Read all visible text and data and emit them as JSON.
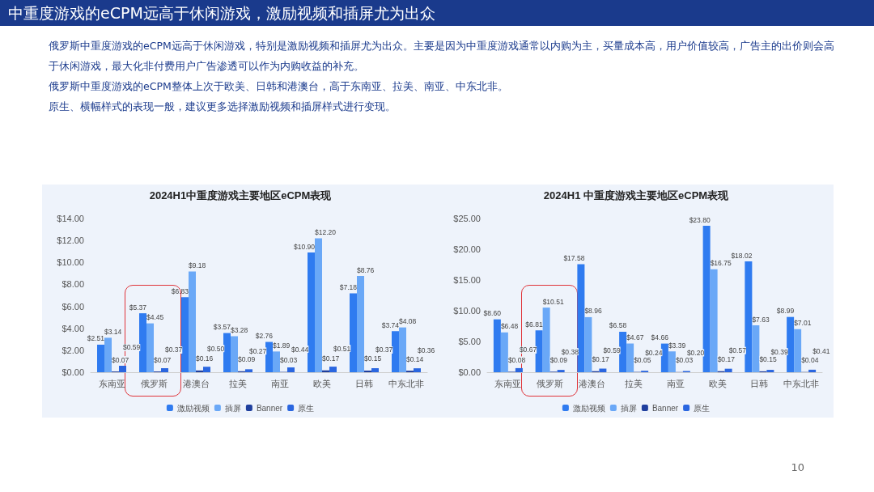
{
  "chart_data": [
    {
      "type": "bar",
      "title": "2024H1中重度游戏主要地区eCPM表现",
      "categories": [
        "东南亚",
        "俄罗斯",
        "港澳台",
        "拉美",
        "南亚",
        "欧美",
        "日韩",
        "中东北非"
      ],
      "series": [
        {
          "name": "激励视频",
          "color": "#2f7bf0",
          "values": [
            2.51,
            5.37,
            6.83,
            3.57,
            2.76,
            10.9,
            7.18,
            3.74
          ],
          "value_labels": [
            "$2.51",
            "$5.37",
            "$6.83",
            "$3.57",
            "$2.76",
            "$10.90",
            "$7.18",
            "$3.74"
          ]
        },
        {
          "name": "插屏",
          "color": "#6aa8f7",
          "values": [
            3.14,
            4.45,
            9.18,
            3.28,
            1.89,
            12.2,
            8.76,
            4.08
          ],
          "value_labels": [
            "$3.14",
            "$4.45",
            "$9.18",
            "$3.28",
            "$1.89",
            "$12.20",
            "$8.76",
            "$4.08"
          ]
        },
        {
          "name": "Banner",
          "color": "#1f3f9e",
          "values": [
            0.07,
            0.07,
            0.16,
            0.09,
            0.03,
            0.17,
            0.15,
            0.14
          ],
          "value_labels": [
            "$0.07",
            "$0.07",
            "$0.16",
            "$0.09",
            "$0.03",
            "$0.17",
            "$0.15",
            "$0.14"
          ]
        },
        {
          "name": "原生",
          "color": "#2a66e0",
          "values": [
            0.59,
            0.37,
            0.5,
            0.27,
            0.44,
            0.51,
            0.37,
            0.36
          ],
          "value_labels": [
            "$0.59",
            "$0.37",
            "$0.50",
            "$0.27",
            "$0.44",
            "$0.51",
            "$0.37",
            "$0.36"
          ]
        }
      ],
      "ylim": [
        0,
        14
      ],
      "yticks": [
        {
          "value": 0,
          "label": "$0.00"
        },
        {
          "value": 2,
          "label": "$2.00"
        },
        {
          "value": 4,
          "label": "$4.00"
        },
        {
          "value": 6,
          "label": "$6.00"
        },
        {
          "value": 8,
          "label": "$8.00"
        },
        {
          "value": 10,
          "label": "$10.00"
        },
        {
          "value": 12,
          "label": "$12.00"
        },
        {
          "value": 14,
          "label": "$14.00"
        }
      ],
      "grid": false,
      "legend": "bottom",
      "annotations": [
        "中重度游戏的eCPM远高于休闲游戏，激励视频和插屏尤为出众",
        "俄罗斯中重度游戏的eCPM远高于休闲游戏，特别是激励视频和插屏尤为出众。主要是因为中重度游戏通常以内购为主，买量成本高，用户价值较高，广告主的出价则会高于休闲游戏，最大化非付费用户广告渗透可以作为内购收益的补充。",
        "俄罗斯中重度游戏的eCPM整体上次于欧美、日韩和港澳台，高于东南亚、拉美、南亚、中东北非。",
        "原生、横幅样式的表现一般，建议更多选择激励视频和插屏样式进行变现。"
      ]
    },
    {
      "type": "bar",
      "title": "2024H1 中重度游戏主要地区eCPM表现",
      "categories": [
        "东南亚",
        "俄罗斯",
        "港澳台",
        "拉美",
        "南亚",
        "欧美",
        "日韩",
        "中东北非"
      ],
      "series": [
        {
          "name": "激励视频",
          "color": "#2f7bf0",
          "values": [
            8.6,
            6.81,
            17.58,
            6.58,
            4.66,
            23.8,
            18.02,
            8.99
          ],
          "value_labels": [
            "$8.60",
            "$6.81",
            "$17.58",
            "$6.58",
            "$4.66",
            "$23.80",
            "$18.02",
            "$8.99"
          ]
        },
        {
          "name": "插屏",
          "color": "#6aa8f7",
          "values": [
            6.48,
            10.51,
            8.96,
            4.67,
            3.39,
            16.75,
            7.63,
            7.01
          ],
          "value_labels": [
            "$6.48",
            "$10.51",
            "$8.96",
            "$4.67",
            "$3.39",
            "$16.75",
            "$7.63",
            "$7.01"
          ]
        },
        {
          "name": "Banner",
          "color": "#1f3f9e",
          "values": [
            0.08,
            0.09,
            0.17,
            0.05,
            0.03,
            0.17,
            0.15,
            0.04
          ],
          "value_labels": [
            "$0.08",
            "$0.09",
            "$0.17",
            "$0.05",
            "$0.03",
            "$0.17",
            "$0.15",
            "$0.04"
          ]
        },
        {
          "name": "原生",
          "color": "#2a66e0",
          "values": [
            0.67,
            0.38,
            0.59,
            0.24,
            0.2,
            0.57,
            0.39,
            0.41
          ],
          "value_labels": [
            "$0.67",
            "$0.38",
            "$0.59",
            "$0.24",
            "$0.20",
            "$0.57",
            "$0.39",
            "$0.41"
          ]
        }
      ],
      "ylim": [
        0,
        25
      ],
      "yticks": [
        {
          "value": 0,
          "label": "$0.00"
        },
        {
          "value": 5,
          "label": "$5.00"
        },
        {
          "value": 10,
          "label": "$10.00"
        },
        {
          "value": 15,
          "label": "$15.00"
        },
        {
          "value": 20,
          "label": "$20.00"
        },
        {
          "value": 25,
          "label": "$25.00"
        }
      ],
      "grid": false,
      "legend": "bottom",
      "annotations": [
        "10"
      ]
    }
  ]
}
